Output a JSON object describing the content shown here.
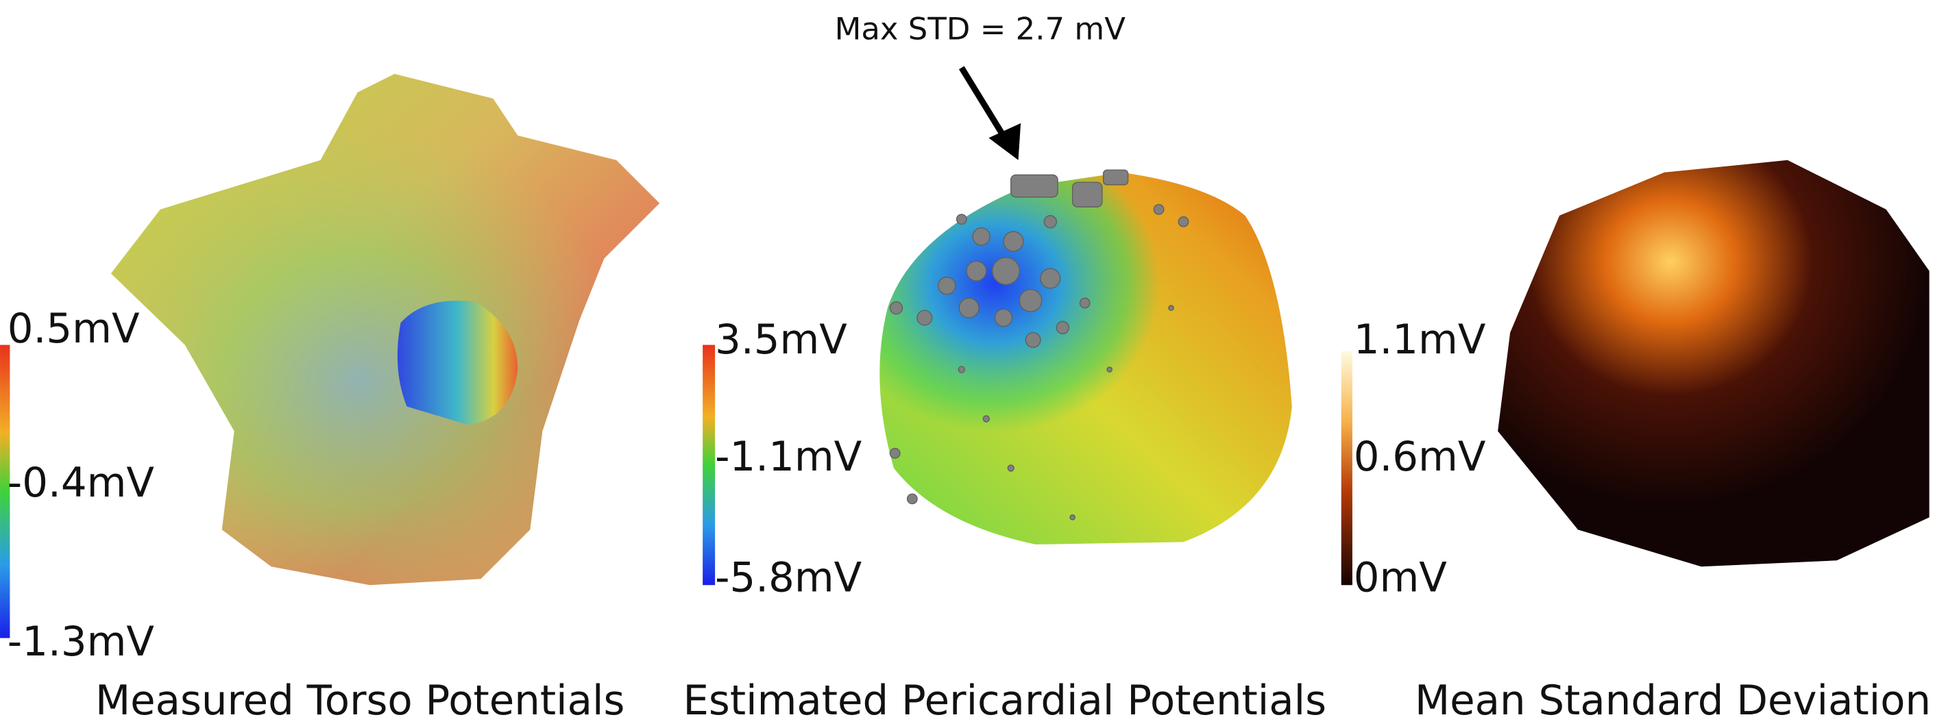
{
  "annotation": "Max STD = 2.7 mV",
  "panels": [
    {
      "title": "Measured Torso Potentials",
      "colorbar": {
        "max": "0.5mV",
        "mid": "-0.4mV",
        "min": "-1.3mV"
      }
    },
    {
      "title": "Estimated Pericardial Potentials",
      "colorbar": {
        "max": "3.5mV",
        "mid": "-1.1mV",
        "min": "-5.8mV"
      }
    },
    {
      "title": "Mean Standard Deviation",
      "colorbar": {
        "max": "1.1mV",
        "mid": "0.6mV",
        "min": "0mV"
      }
    }
  ]
}
